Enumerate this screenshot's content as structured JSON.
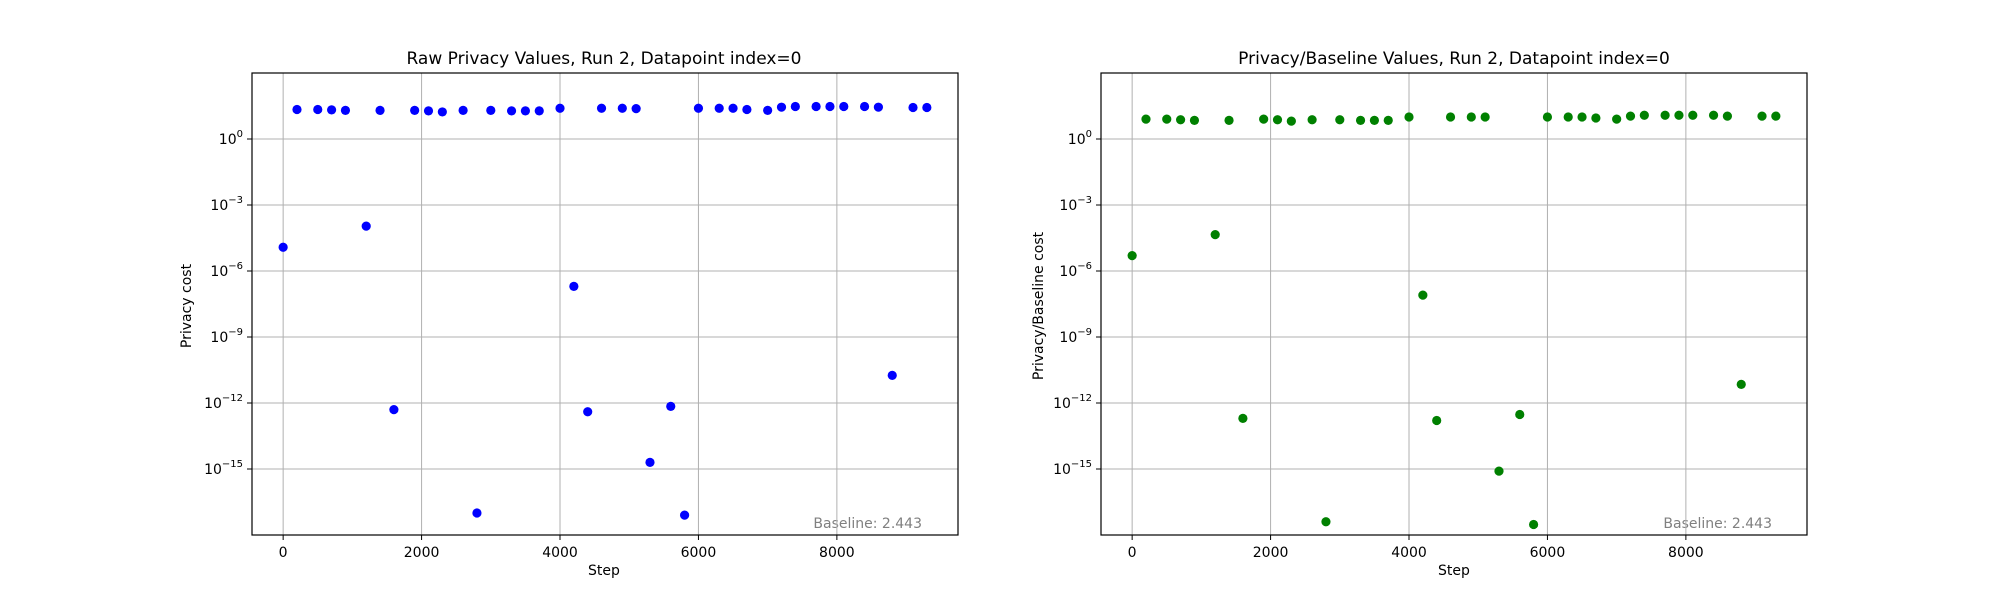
{
  "chart_data": [
    {
      "type": "scatter",
      "title": "Raw Privacy Values, Run 2, Datapoint index=0",
      "xlabel": "Step",
      "ylabel": "Privacy cost",
      "yscale": "log",
      "xlim": [
        -450,
        9750
      ],
      "ylim": [
        1e-18,
        1000
      ],
      "xticks": [
        0,
        2000,
        4000,
        6000,
        8000
      ],
      "xtick_labels": [
        "0",
        "2000",
        "4000",
        "6000",
        "8000"
      ],
      "yticks": [
        1e-15,
        1e-12,
        1e-09,
        1e-06,
        0.001,
        1
      ],
      "ytick_labels": [
        [
          "10",
          "−15"
        ],
        [
          "10",
          "−12"
        ],
        [
          "10",
          "−9"
        ],
        [
          "10",
          "−6"
        ],
        [
          "10",
          "−3"
        ],
        [
          "10",
          "0"
        ]
      ],
      "grid": true,
      "annotation": "Baseline: 2.443",
      "color": "#0000ff",
      "x": [
        0,
        200,
        500,
        700,
        900,
        1200,
        1400,
        1600,
        1900,
        2100,
        2300,
        2600,
        2800,
        3000,
        3300,
        3500,
        3700,
        4000,
        4200,
        4400,
        4600,
        4900,
        5100,
        5300,
        5600,
        5800,
        6000,
        6300,
        6500,
        6700,
        7000,
        7200,
        7400,
        7700,
        7900,
        8100,
        8400,
        8600,
        8800,
        9100,
        9300
      ],
      "y": [
        1.2e-05,
        22,
        22,
        21,
        20,
        0.00011,
        20,
        5e-13,
        20,
        19,
        17,
        20,
        1e-17,
        20,
        19,
        19,
        19,
        25,
        2e-07,
        4e-13,
        25,
        25,
        24,
        2e-15,
        7e-13,
        8e-18,
        25,
        25,
        25,
        22,
        20,
        28,
        30,
        30,
        30,
        30,
        30,
        28,
        1.8e-11,
        27,
        27
      ]
    },
    {
      "type": "scatter",
      "title": "Privacy/Baseline Values, Run 2, Datapoint index=0",
      "xlabel": "Step",
      "ylabel": "Privacy/Baseline cost",
      "yscale": "log",
      "xlim": [
        -450,
        9750
      ],
      "ylim": [
        1e-18,
        1000
      ],
      "xticks": [
        0,
        2000,
        4000,
        6000,
        8000
      ],
      "xtick_labels": [
        "0",
        "2000",
        "4000",
        "6000",
        "8000"
      ],
      "yticks": [
        1e-15,
        1e-12,
        1e-09,
        1e-06,
        0.001,
        1
      ],
      "ytick_labels": [
        [
          "10",
          "−15"
        ],
        [
          "10",
          "−12"
        ],
        [
          "10",
          "−9"
        ],
        [
          "10",
          "−6"
        ],
        [
          "10",
          "−3"
        ],
        [
          "10",
          "0"
        ]
      ],
      "grid": true,
      "annotation": "Baseline: 2.443",
      "color": "#008000",
      "x": [
        0,
        200,
        500,
        700,
        900,
        1200,
        1400,
        1600,
        1900,
        2100,
        2300,
        2600,
        2800,
        3000,
        3300,
        3500,
        3700,
        4000,
        4200,
        4400,
        4600,
        4900,
        5100,
        5300,
        5600,
        5800,
        6000,
        6300,
        6500,
        6700,
        7000,
        7200,
        7400,
        7700,
        7900,
        8100,
        8400,
        8600,
        8800,
        9100,
        9300
      ],
      "y": [
        5e-06,
        8,
        8,
        7.5,
        7,
        4.5e-05,
        7,
        2e-13,
        8,
        7.5,
        6.5,
        7.5,
        4e-18,
        7.5,
        7,
        7,
        7,
        10,
        8e-08,
        1.6e-13,
        10,
        10,
        10,
        8e-16,
        3e-13,
        3e-18,
        10,
        10,
        10,
        9,
        8,
        11,
        12,
        12,
        12,
        12,
        12,
        11,
        7e-12,
        11,
        11
      ]
    }
  ]
}
